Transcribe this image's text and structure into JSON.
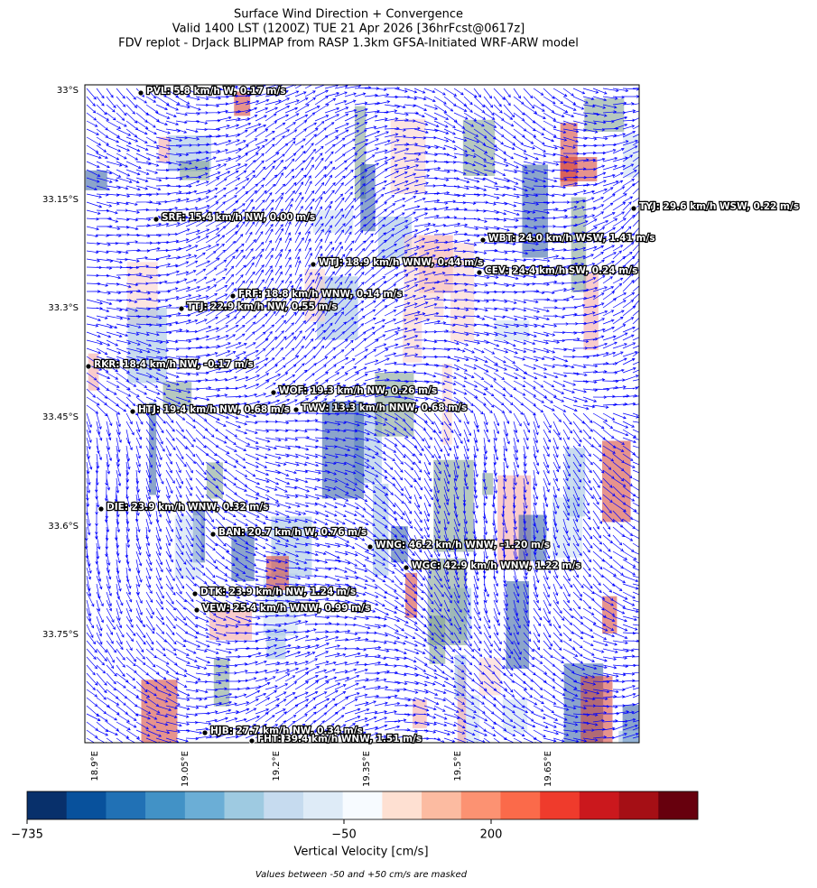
{
  "title_lines": [
    "Surface Wind Direction + Convergence",
    "Valid 1400 LST (1200Z) TUE 21 Apr 2026 [36hrFcst@0617z]",
    "FDV replot - DrJack BLIPMAP from RASP 1.3km GFSA-Initiated WRF-ARW model"
  ],
  "map": {
    "lon_ticks": [
      "18.9°E",
      "19.05°E",
      "19.2°E",
      "19.35°E",
      "19.5°E",
      "19.65°E"
    ],
    "lat_ticks": [
      "33°S",
      "33.15°S",
      "33.3°S",
      "33.45°S",
      "33.6°S",
      "33.75°S"
    ],
    "vector_color": "#0000ff",
    "stations": [
      "PVL: 5.8 km/h W, 0.17 m/s",
      "SRF: 15.4 km/h NW, 0.00 m/s",
      "TYJ: 29.6 km/h WSW, 0.22 m/s",
      "WBT: 24.0 km/h WSW, 1.41 m/s",
      "WTJ: 18.9 km/h WNW, 0.44 m/s",
      "CEV: 24.4 km/h SW, 0.24 m/s",
      "FRF: 18.8 km/h WNW, 0.14 m/s",
      "TTJ: 22.9 km/h NW, 0.55 m/s",
      "RKR: 18.4 km/h NW, -0.17 m/s",
      "WOF: 19.3 km/h NW, 0.26 m/s",
      "HTJ: 19.4 km/h NW, 0.68 m/s",
      "TWV: 13.3 km/h NNW, 0.68 m/s",
      "DIE: 23.9 km/h WNW, 0.32 m/s",
      "BAN: 20.7 km/h W, 0.76 m/s",
      "WNG: 46.2 km/h WNW, -1.20 m/s",
      "WGC: 42.9 km/h WNW, 1.22 m/s",
      "DTK: 23.9 km/h NW, 1.24 m/s",
      "VEW: 25.4 km/h WNW, 0.99 m/s",
      "HJB: 27.7 km/h NW, 0.34 m/s",
      "FHT: 39.4 km/h WNW, 1.51 m/s"
    ]
  },
  "colorbar": {
    "colors": [
      "#08306b",
      "#08519c",
      "#2171b5",
      "#4292c6",
      "#6baed6",
      "#9ecae1",
      "#c6dbef",
      "#deebf7",
      "#f7fbff",
      "#fee0d2",
      "#fcbba1",
      "#fc9272",
      "#fb6a4a",
      "#ef3b2c",
      "#cb181d",
      "#a50f15",
      "#67000d"
    ],
    "ticks": [
      {
        "value": -735,
        "label": "−735"
      },
      {
        "value": -50,
        "label": "−50"
      },
      {
        "value": 200,
        "label": "200"
      }
    ],
    "label": "Vertical Velocity [cm/s]",
    "note": "Values between -50 and +50 cm/s are masked"
  }
}
